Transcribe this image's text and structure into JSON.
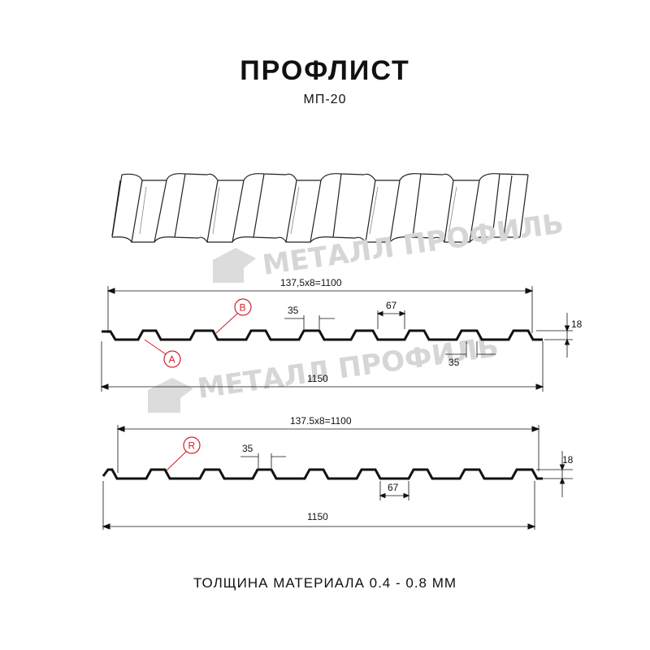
{
  "title": "ПРОФЛИСТ",
  "subtitle": "МП-20",
  "footer": "ТОЛЩИНА МАТЕРИАЛА 0.4 - 0.8 ММ",
  "watermark": "МЕТАЛЛ ПРОФИЛЬ",
  "colors": {
    "line": "#111111",
    "marker": "#d0202a",
    "watermark": "#d6d6d6"
  },
  "profile1": {
    "pitch_dim": "137,5x8=1100",
    "total_width": "1150",
    "height": "18",
    "crest_dim": "35",
    "valley_dim": "35",
    "rib_dim": "67",
    "marker_a": "A",
    "marker_b": "B"
  },
  "profile2": {
    "pitch_dim": "137.5x8=1100",
    "total_width": "1150",
    "height": "18",
    "crest_dim": "35",
    "rib_dim": "67",
    "marker_r": "R"
  }
}
